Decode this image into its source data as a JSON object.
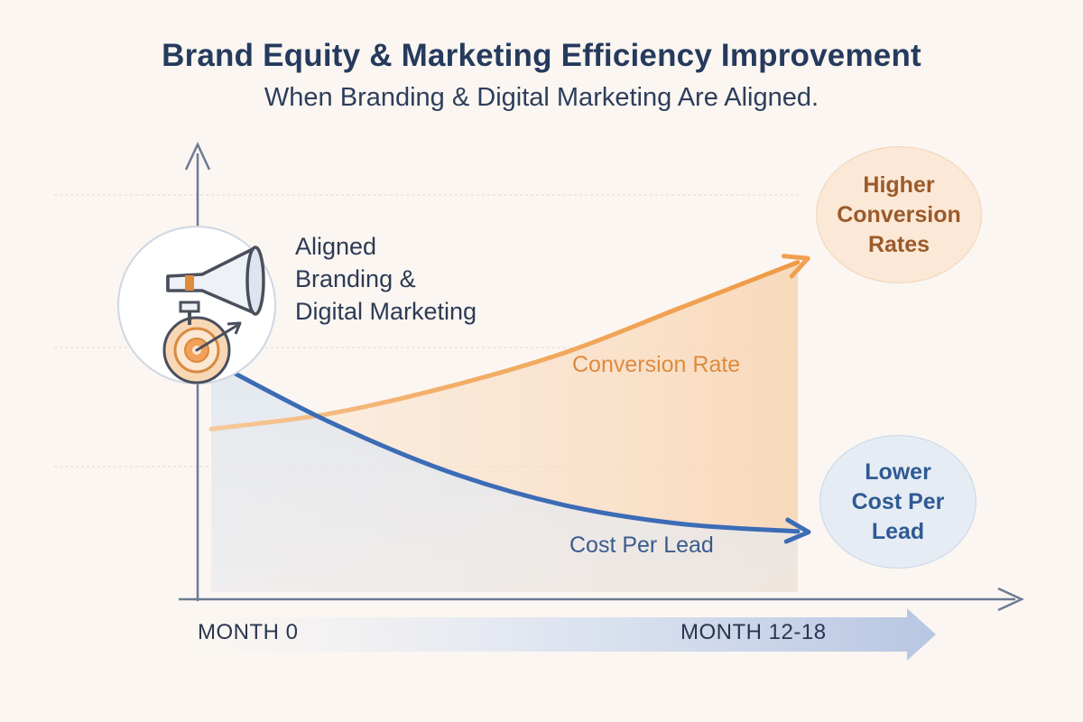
{
  "header": {
    "title": "Brand Equity & Marketing Efficiency Improvement",
    "subtitle": "When Branding & Digital Marketing Are Aligned."
  },
  "callout": {
    "lines": [
      "Aligned",
      "Branding &",
      "Digital Marketing"
    ],
    "icons": [
      "megaphone-icon",
      "target-icon"
    ]
  },
  "bubbles": {
    "higher": [
      "Higher",
      "Conversion",
      "Rates"
    ],
    "lower": [
      "Lower",
      "Cost Per",
      "Lead"
    ]
  },
  "timeline": {
    "start": "MONTH 0",
    "end": "MONTH 12-18"
  },
  "colors": {
    "conversion": "#f0a050",
    "cost_per_lead": "#3c6cb6",
    "axis": "#6d7b93",
    "title": "#263a5e"
  },
  "chart_data": {
    "type": "line",
    "title": "Brand Equity & Marketing Efficiency Improvement",
    "subtitle": "When Branding & Digital Marketing Are Aligned.",
    "xlabel": "",
    "ylabel": "",
    "x_tick_labels": [
      "MONTH 0",
      "MONTH 12-18"
    ],
    "xlim": [
      0,
      1
    ],
    "ylim": [
      0,
      1
    ],
    "grid": true,
    "series": [
      {
        "name": "Conversion Rate",
        "x": [
          0,
          0.2,
          0.4,
          0.6,
          0.8,
          1.0
        ],
        "y": [
          0.43,
          0.47,
          0.54,
          0.63,
          0.75,
          0.87
        ]
      },
      {
        "name": "Cost Per Lead",
        "x": [
          0,
          0.2,
          0.4,
          0.6,
          0.8,
          1.0
        ],
        "y": [
          0.61,
          0.45,
          0.32,
          0.23,
          0.18,
          0.16
        ]
      }
    ],
    "annotations": [
      "Higher Conversion Rates",
      "Lower Cost Per Lead"
    ]
  }
}
